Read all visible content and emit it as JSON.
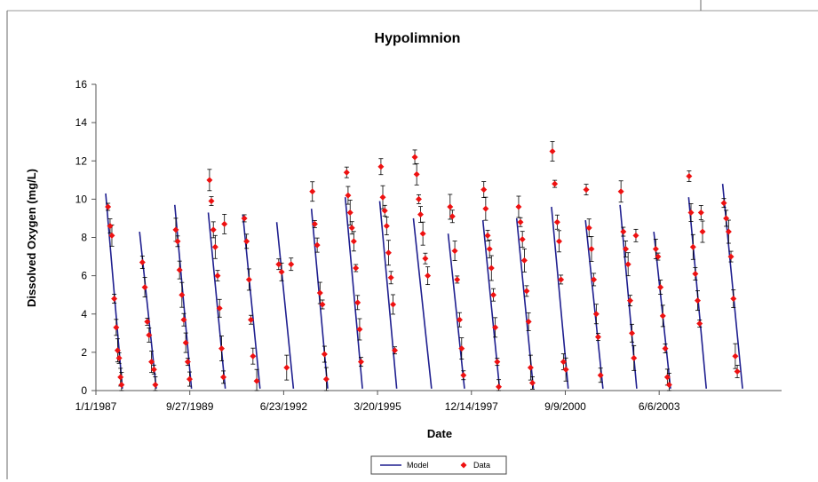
{
  "chart_data": {
    "type": "line",
    "title": "Hypolimnion",
    "xlabel": "Date",
    "ylabel": "Dissolved Oxygen (mg/L)",
    "ylim": [
      0,
      16
    ],
    "xlim": [
      "1987-01-01",
      "2006-12-31"
    ],
    "x_tick_labels": [
      "1/1/1987",
      "9/27/1989",
      "6/23/1992",
      "3/20/1995",
      "12/14/1997",
      "9/9/2000",
      "6/6/2003"
    ],
    "x_tick_dates": [
      "1987-01-01",
      "1989-09-27",
      "1992-06-23",
      "1995-03-20",
      "1997-12-14",
      "2000-09-09",
      "2003-06-06"
    ],
    "y_ticks": [
      0,
      2,
      4,
      6,
      8,
      10,
      12,
      14,
      16
    ],
    "grid": false,
    "legend_position": "bottom-center",
    "colors": {
      "model": "#1f1f8f",
      "data": "#ee1111",
      "error_bar": "#000000"
    },
    "series": [
      {
        "name": "Model",
        "segments": [
          {
            "start": [
              "1987-04-15",
              10.3
            ],
            "end": [
              "1987-10-10",
              0.1
            ]
          },
          {
            "start": [
              "1988-04-10",
              8.3
            ],
            "end": [
              "1988-10-05",
              0.1
            ]
          },
          {
            "start": [
              "1989-04-20",
              9.7
            ],
            "end": [
              "1989-10-15",
              0.1
            ]
          },
          {
            "start": [
              "1990-04-12",
              9.3
            ],
            "end": [
              "1990-10-10",
              0.1
            ]
          },
          {
            "start": [
              "1991-04-15",
              9.2
            ],
            "end": [
              "1991-10-15",
              0.1
            ]
          },
          {
            "start": [
              "1992-04-10",
              8.8
            ],
            "end": [
              "1992-10-05",
              0.1
            ]
          },
          {
            "start": [
              "1993-04-15",
              9.5
            ],
            "end": [
              "1993-10-05",
              0.1
            ]
          },
          {
            "start": [
              "1994-04-10",
              10.1
            ],
            "end": [
              "1994-10-10",
              0.1
            ]
          },
          {
            "start": [
              "1995-04-12",
              9.9
            ],
            "end": [
              "1995-10-10",
              0.1
            ]
          },
          {
            "start": [
              "1996-04-05",
              9.0
            ],
            "end": [
              "1996-10-15",
              0.1
            ]
          },
          {
            "start": [
              "1997-04-10",
              8.2
            ],
            "end": [
              "1997-10-01",
              0.1
            ]
          },
          {
            "start": [
              "1998-04-15",
              8.9
            ],
            "end": [
              "1998-10-10",
              0.1
            ]
          },
          {
            "start": [
              "1999-04-10",
              9.0
            ],
            "end": [
              "1999-10-05",
              0.1
            ]
          },
          {
            "start": [
              "2000-04-15",
              9.6
            ],
            "end": [
              "2000-10-10",
              0.1
            ]
          },
          {
            "start": [
              "2001-04-12",
              8.9
            ],
            "end": [
              "2001-10-15",
              0.1
            ]
          },
          {
            "start": [
              "2002-04-15",
              9.7
            ],
            "end": [
              "2002-10-10",
              0.1
            ]
          },
          {
            "start": [
              "2003-04-10",
              8.3
            ],
            "end": [
              "2003-10-05",
              0.1
            ]
          },
          {
            "start": [
              "2004-04-15",
              10.1
            ],
            "end": [
              "2004-10-20",
              0.1
            ]
          },
          {
            "start": [
              "2005-04-12",
              10.8
            ],
            "end": [
              "2005-11-10",
              0.1
            ]
          }
        ]
      },
      {
        "name": "Data",
        "points": [
          [
            "1987-05-10",
            9.6
          ],
          [
            "1987-06-01",
            8.6
          ],
          [
            "1987-06-20",
            8.1
          ],
          [
            "1987-07-15",
            4.8
          ],
          [
            "1987-08-05",
            3.3
          ],
          [
            "1987-08-20",
            2.1
          ],
          [
            "1987-09-05",
            1.7
          ],
          [
            "1987-09-20",
            0.7
          ],
          [
            "1987-10-01",
            0.3
          ],
          [
            "1988-05-10",
            6.7
          ],
          [
            "1988-06-05",
            5.4
          ],
          [
            "1988-07-01",
            3.6
          ],
          [
            "1988-07-20",
            2.9
          ],
          [
            "1988-08-15",
            1.5
          ],
          [
            "1988-09-10",
            1.1
          ],
          [
            "1988-09-25",
            0.3
          ],
          [
            "1989-05-01",
            8.4
          ],
          [
            "1989-05-20",
            7.8
          ],
          [
            "1989-06-10",
            6.3
          ],
          [
            "1989-07-05",
            5.0
          ],
          [
            "1989-07-25",
            3.7
          ],
          [
            "1989-08-15",
            2.5
          ],
          [
            "1989-09-05",
            1.5
          ],
          [
            "1989-09-25",
            0.6
          ],
          [
            "1990-04-25",
            11.0
          ],
          [
            "1990-05-15",
            9.9
          ],
          [
            "1990-06-05",
            8.4
          ],
          [
            "1990-06-25",
            7.5
          ],
          [
            "1990-07-20",
            6.0
          ],
          [
            "1990-08-10",
            4.3
          ],
          [
            "1990-09-01",
            2.2
          ],
          [
            "1990-09-20",
            0.7
          ],
          [
            "1990-10-01",
            8.7
          ],
          [
            "1991-05-01",
            9.0
          ],
          [
            "1991-05-25",
            7.8
          ],
          [
            "1991-06-20",
            5.8
          ],
          [
            "1991-07-10",
            3.7
          ],
          [
            "1991-08-01",
            1.8
          ],
          [
            "1991-09-10",
            0.5
          ],
          [
            "1992-05-01",
            6.6
          ],
          [
            "1992-06-01",
            6.2
          ],
          [
            "1992-07-25",
            1.2
          ],
          [
            "1992-09-10",
            6.6
          ],
          [
            "1993-04-25",
            10.4
          ],
          [
            "1993-05-20",
            8.7
          ],
          [
            "1993-06-15",
            7.6
          ],
          [
            "1993-07-15",
            5.1
          ],
          [
            "1993-08-10",
            4.5
          ],
          [
            "1993-09-01",
            1.9
          ],
          [
            "1993-09-20",
            0.6
          ],
          [
            "1994-04-25",
            11.4
          ],
          [
            "1994-05-10",
            10.2
          ],
          [
            "1994-06-01",
            9.3
          ],
          [
            "1994-06-20",
            8.5
          ],
          [
            "1994-07-10",
            7.8
          ],
          [
            "1994-08-01",
            6.4
          ],
          [
            "1994-08-20",
            4.6
          ],
          [
            "1994-09-10",
            3.2
          ],
          [
            "1994-09-25",
            1.5
          ],
          [
            "1995-04-25",
            11.7
          ],
          [
            "1995-05-15",
            10.1
          ],
          [
            "1995-06-05",
            9.4
          ],
          [
            "1995-06-25",
            8.6
          ],
          [
            "1995-07-15",
            7.2
          ],
          [
            "1995-08-10",
            5.9
          ],
          [
            "1995-09-01",
            4.5
          ],
          [
            "1995-09-20",
            2.1
          ],
          [
            "1996-04-20",
            12.2
          ],
          [
            "1996-05-10",
            11.3
          ],
          [
            "1996-06-01",
            10.0
          ],
          [
            "1996-06-20",
            9.2
          ],
          [
            "1996-07-15",
            8.2
          ],
          [
            "1996-08-10",
            6.9
          ],
          [
            "1996-09-05",
            6.0
          ],
          [
            "1997-05-01",
            9.6
          ],
          [
            "1997-05-25",
            9.1
          ],
          [
            "1997-06-20",
            7.3
          ],
          [
            "1997-07-15",
            5.8
          ],
          [
            "1997-08-10",
            3.7
          ],
          [
            "1997-09-01",
            2.2
          ],
          [
            "1997-09-20",
            0.8
          ],
          [
            "1998-04-25",
            10.5
          ],
          [
            "1998-05-15",
            9.5
          ],
          [
            "1998-06-05",
            8.1
          ],
          [
            "1998-06-25",
            7.4
          ],
          [
            "1998-07-15",
            6.4
          ],
          [
            "1998-08-05",
            5.0
          ],
          [
            "1998-08-25",
            3.3
          ],
          [
            "1998-09-15",
            1.5
          ],
          [
            "1998-10-01",
            0.2
          ],
          [
            "1999-05-01",
            9.6
          ],
          [
            "1999-05-20",
            8.8
          ],
          [
            "1999-06-10",
            7.9
          ],
          [
            "1999-07-01",
            6.8
          ],
          [
            "1999-07-25",
            5.2
          ],
          [
            "1999-08-15",
            3.6
          ],
          [
            "1999-09-05",
            1.2
          ],
          [
            "1999-09-25",
            0.4
          ],
          [
            "2000-04-25",
            12.5
          ],
          [
            "2000-05-20",
            10.8
          ],
          [
            "2000-06-15",
            8.8
          ],
          [
            "2000-07-05",
            7.8
          ],
          [
            "2000-07-25",
            5.8
          ],
          [
            "2000-08-20",
            1.5
          ],
          [
            "2000-09-15",
            1.1
          ],
          [
            "2001-04-20",
            10.5
          ],
          [
            "2001-05-20",
            8.5
          ],
          [
            "2001-06-15",
            7.4
          ],
          [
            "2001-07-10",
            5.8
          ],
          [
            "2001-08-05",
            4.0
          ],
          [
            "2001-08-25",
            2.8
          ],
          [
            "2001-09-20",
            0.8
          ],
          [
            "2002-04-25",
            10.4
          ],
          [
            "2002-05-20",
            8.3
          ],
          [
            "2002-06-15",
            7.4
          ],
          [
            "2002-07-10",
            6.6
          ],
          [
            "2002-08-01",
            4.7
          ],
          [
            "2002-08-20",
            3.0
          ],
          [
            "2002-09-10",
            1.7
          ],
          [
            "2002-10-01",
            8.1
          ],
          [
            "2003-05-01",
            7.4
          ],
          [
            "2003-05-25",
            7.0
          ],
          [
            "2003-06-20",
            5.4
          ],
          [
            "2003-07-15",
            3.9
          ],
          [
            "2003-08-10",
            2.2
          ],
          [
            "2003-09-01",
            0.7
          ],
          [
            "2003-09-20",
            0.3
          ],
          [
            "2004-04-20",
            11.2
          ],
          [
            "2004-05-10",
            9.3
          ],
          [
            "2004-06-01",
            7.5
          ],
          [
            "2004-06-25",
            6.1
          ],
          [
            "2004-07-20",
            4.7
          ],
          [
            "2004-08-10",
            3.5
          ],
          [
            "2004-08-25",
            9.3
          ],
          [
            "2004-09-10",
            8.3
          ],
          [
            "2005-04-25",
            9.8
          ],
          [
            "2005-05-20",
            9.0
          ],
          [
            "2005-06-15",
            8.3
          ],
          [
            "2005-07-10",
            7.0
          ],
          [
            "2005-08-05",
            4.8
          ],
          [
            "2005-08-25",
            1.8
          ],
          [
            "2005-09-15",
            1.0
          ]
        ]
      }
    ]
  }
}
